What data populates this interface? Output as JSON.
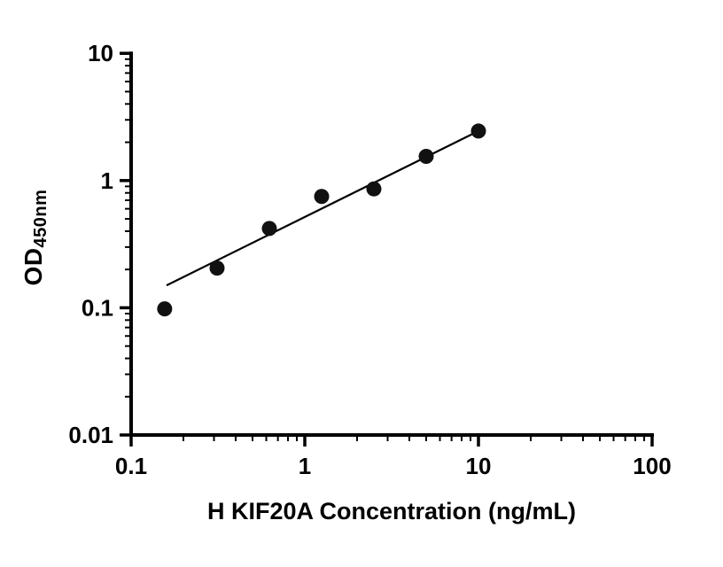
{
  "chart_data": {
    "type": "scatter",
    "title": "",
    "xlabel": "H KIF20A Concentration (ng/mL)",
    "ylabel_main": "OD",
    "ylabel_sub": "450nm",
    "x_scale": "log",
    "y_scale": "log",
    "xlim": [
      0.1,
      100
    ],
    "ylim": [
      0.01,
      10
    ],
    "x_ticks": [
      {
        "value": 0.1,
        "label": "0.1"
      },
      {
        "value": 1,
        "label": "1"
      },
      {
        "value": 10,
        "label": "10"
      },
      {
        "value": 100,
        "label": "100"
      }
    ],
    "y_ticks": [
      {
        "value": 0.01,
        "label": "0.01"
      },
      {
        "value": 0.1,
        "label": "0.1"
      },
      {
        "value": 1,
        "label": "1"
      },
      {
        "value": 10,
        "label": "10"
      }
    ],
    "minor_ticks": true,
    "grid": false,
    "legend": "none",
    "points": [
      {
        "x": 0.156,
        "y": 0.098
      },
      {
        "x": 0.3125,
        "y": 0.205
      },
      {
        "x": 0.625,
        "y": 0.42
      },
      {
        "x": 1.25,
        "y": 0.75
      },
      {
        "x": 2.5,
        "y": 0.86
      },
      {
        "x": 5,
        "y": 1.55
      },
      {
        "x": 10,
        "y": 2.45
      }
    ],
    "fit_line": {
      "x1": 0.16,
      "y1": 0.15,
      "x2": 10,
      "y2": 2.45
    },
    "point_color": "#111111",
    "line_color": "#000000",
    "axis_color": "#000000",
    "background_color": "#ffffff"
  }
}
